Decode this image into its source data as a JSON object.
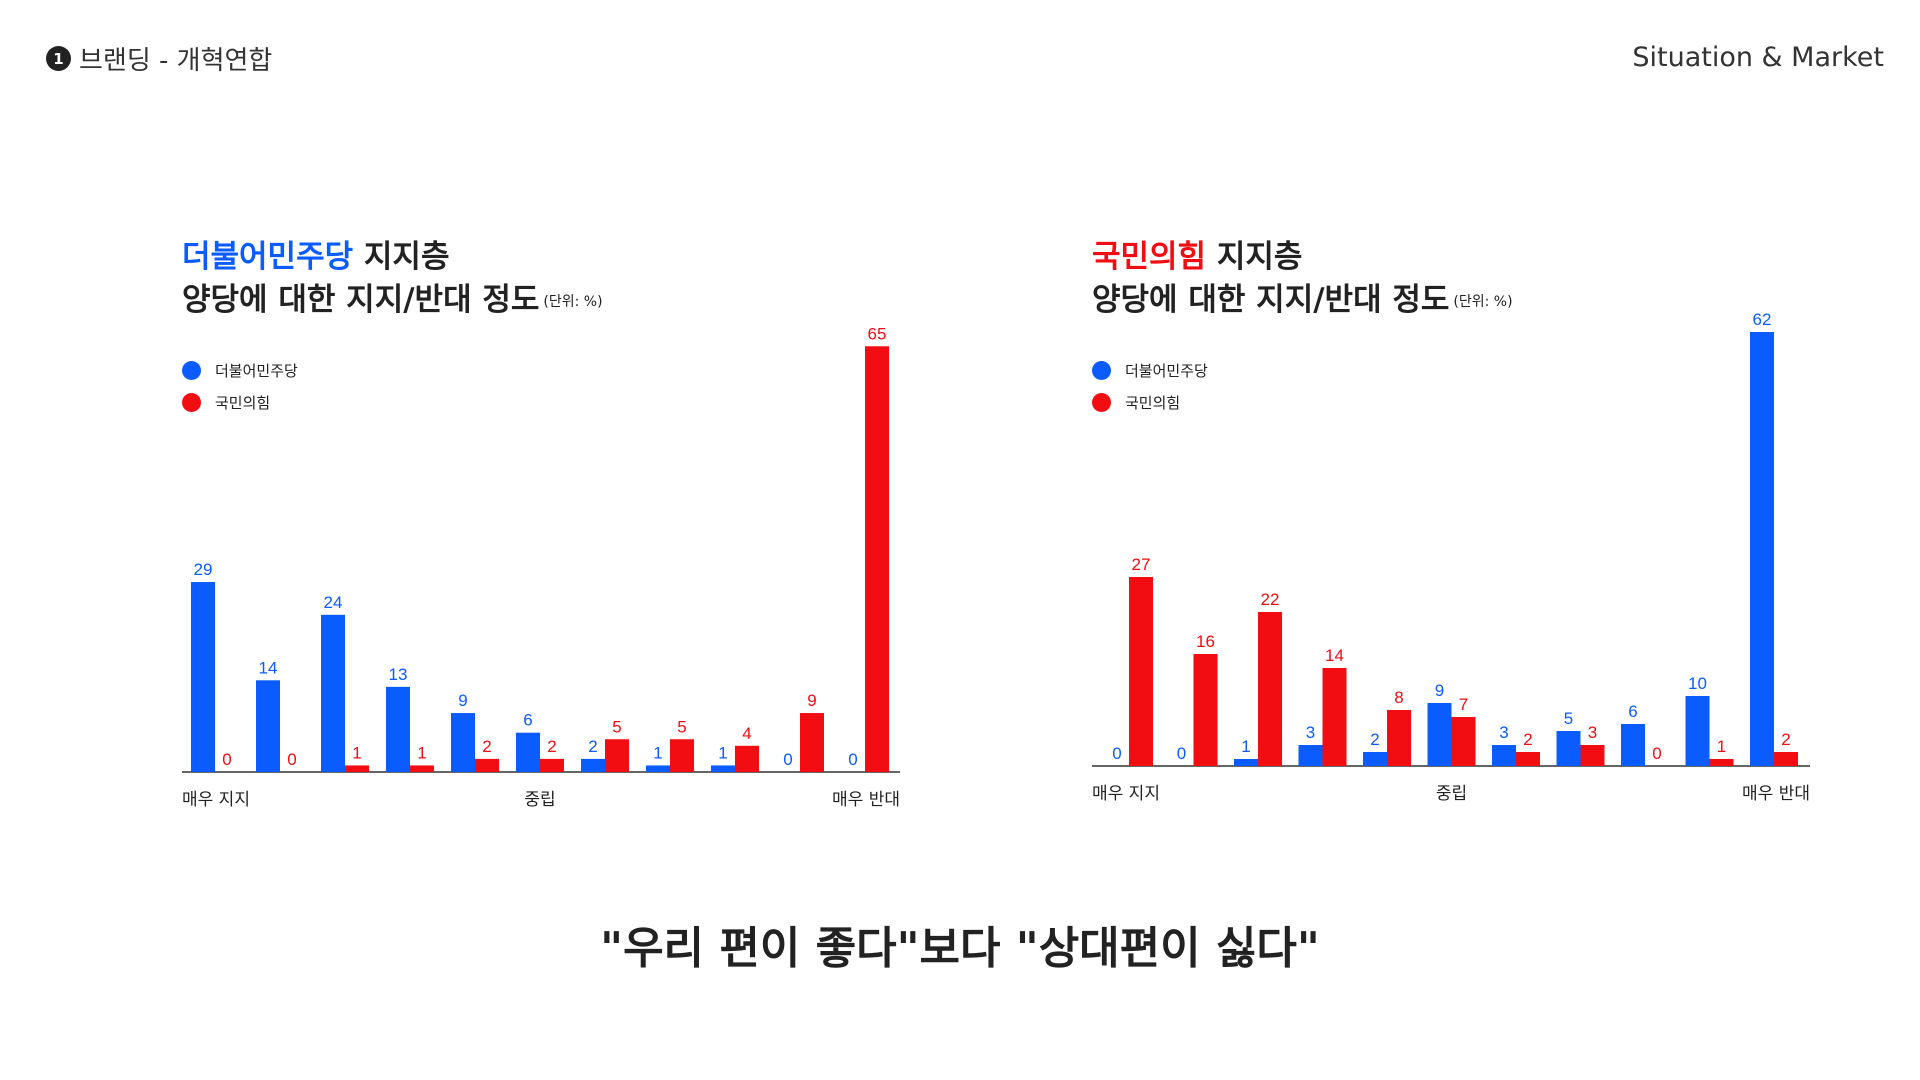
{
  "header": {
    "step_number": "1",
    "section_title": "브랜딩  - 개혁연합",
    "top_right": "Situation & Market"
  },
  "colors": {
    "democratic_blue": "#0a5cff",
    "ppp_red": "#f20d12"
  },
  "charts": [
    {
      "party_name": "더불어민주당",
      "title_suffix": " 지지층",
      "title_line2": "양당에 대한 지지/반대 정도",
      "unit": "(단위: %)",
      "legend": [
        "더불어민주당",
        "국민의힘"
      ],
      "axis_labels": {
        "left": "매우 지지",
        "center": "중립",
        "right": "매우 반대"
      }
    },
    {
      "party_name": "국민의힘",
      "title_suffix": " 지지층",
      "title_line2": "양당에 대한 지지/반대 정도",
      "unit": "(단위: %)",
      "legend": [
        "더불어민주당",
        "국민의힘"
      ],
      "axis_labels": {
        "left": "매우 지지",
        "center": "중립",
        "right": "매우 반대"
      }
    }
  ],
  "chart_data": [
    {
      "type": "bar",
      "title": "더불어민주당 지지층 양당에 대한 지지/반대 정도 (단위: %)",
      "categories": [
        "매우 지지",
        "",
        "",
        "",
        "",
        "중립",
        "",
        "",
        "",
        "",
        "매우 반대"
      ],
      "series": [
        {
          "name": "더불어민주당",
          "color": "#0a5cff",
          "values": [
            29,
            14,
            24,
            13,
            9,
            6,
            2,
            1,
            1,
            0,
            0
          ]
        },
        {
          "name": "국민의힘",
          "color": "#f20d12",
          "values": [
            0,
            0,
            1,
            1,
            2,
            2,
            5,
            5,
            4,
            9,
            65
          ]
        }
      ],
      "ylim": [
        0,
        65
      ],
      "xlabel": "",
      "ylabel": "",
      "legend": "top-left"
    },
    {
      "type": "bar",
      "title": "국민의힘 지지층 양당에 대한 지지/반대 정도 (단위: %)",
      "categories": [
        "매우 지지",
        "",
        "",
        "",
        "",
        "중립",
        "",
        "",
        "",
        "",
        "매우 반대"
      ],
      "series": [
        {
          "name": "더불어민주당",
          "color": "#0a5cff",
          "values": [
            0,
            0,
            1,
            3,
            2,
            9,
            3,
            5,
            6,
            10,
            62
          ]
        },
        {
          "name": "국민의힘",
          "color": "#f20d12",
          "values": [
            27,
            16,
            22,
            14,
            8,
            7,
            2,
            3,
            0,
            1,
            2
          ]
        }
      ],
      "ylim": [
        0,
        62
      ],
      "xlabel": "",
      "ylabel": "",
      "legend": "top-left"
    }
  ],
  "caption": "\"우리 편이 좋다\"보다 \"상대편이 싫다\""
}
